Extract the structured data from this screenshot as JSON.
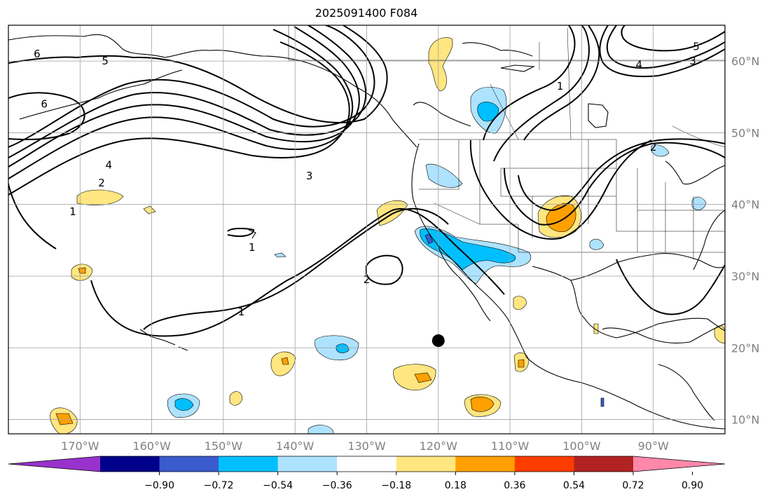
{
  "title": "2025091400 F084",
  "map": {
    "projection": "plate-carree",
    "lon_range": [
      -180,
      -80
    ],
    "lat_range": [
      8,
      65
    ],
    "lon_ticks": [
      "170°W",
      "160°W",
      "150°W",
      "140°W",
      "130°W",
      "120°W",
      "110°W",
      "100°W",
      "90°W"
    ],
    "lat_ticks": [
      "60°N",
      "50°N",
      "40°N",
      "30°N",
      "20°N",
      "10°N"
    ],
    "grid": true,
    "contour_labels": [
      {
        "text": "6",
        "lon": -176,
        "lat": 61
      },
      {
        "text": "5",
        "lon": -166.5,
        "lat": 60
      },
      {
        "text": "6",
        "lon": -175,
        "lat": 54
      },
      {
        "text": "4",
        "lon": -166,
        "lat": 45.5
      },
      {
        "text": "2",
        "lon": -167,
        "lat": 43
      },
      {
        "text": "1",
        "lon": -171,
        "lat": 39
      },
      {
        "text": "3",
        "lon": -138,
        "lat": 44
      },
      {
        "text": "1",
        "lon": -146,
        "lat": 34
      },
      {
        "text": "2",
        "lon": -130,
        "lat": 29.5
      },
      {
        "text": "1",
        "lon": -147.5,
        "lat": 25
      },
      {
        "text": "1",
        "lon": -103,
        "lat": 56.5
      },
      {
        "text": "2",
        "lon": -90,
        "lat": 48
      },
      {
        "text": "3",
        "lon": -84.5,
        "lat": 60
      },
      {
        "text": "4",
        "lon": -92,
        "lat": 59.5
      },
      {
        "text": "5",
        "lon": -84,
        "lat": 62
      }
    ],
    "marker": {
      "lon": -120,
      "lat": 21,
      "color": "#000000",
      "name": "point-marker"
    }
  },
  "colorbar": {
    "ticks": [
      "−0.90",
      "−0.72",
      "−0.54",
      "−0.36",
      "−0.18",
      "0.18",
      "0.36",
      "0.54",
      "0.72",
      "0.90"
    ],
    "colors": [
      "#9932cc",
      "#00008b",
      "#3a5bcd",
      "#00bfff",
      "#aee3ff",
      "#ffffff",
      "#ffe680",
      "#ffa000",
      "#ff3c00",
      "#b22222",
      "#ff88aa"
    ]
  }
}
